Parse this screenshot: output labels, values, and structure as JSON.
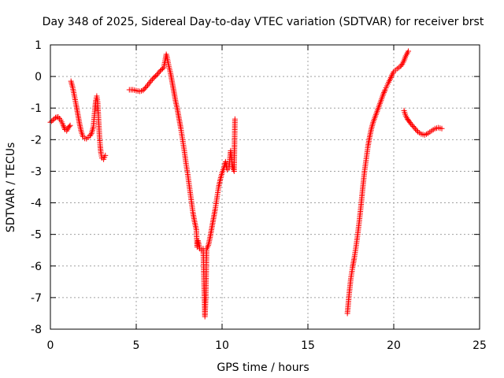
{
  "chart_data": {
    "type": "scatter",
    "title": "Day 348 of 2025, Sidereal Day-to-day VTEC variation (SDTVAR) for receiver brst",
    "xlabel": "GPS time / hours",
    "ylabel": "SDTVAR / TECUs",
    "xlim": [
      0,
      25
    ],
    "ylim": [
      -8,
      1
    ],
    "xticks": [
      0,
      5,
      10,
      15,
      20,
      25
    ],
    "yticks": [
      -8,
      -7,
      -6,
      -5,
      -4,
      -3,
      -2,
      -1,
      0,
      1
    ],
    "grid": true,
    "marker": "+",
    "color": "#ff0000",
    "series": [
      {
        "name": "SDTVAR",
        "segments": [
          [
            [
              0.0,
              -1.45
            ],
            [
              0.15,
              -1.38
            ],
            [
              0.3,
              -1.3
            ],
            [
              0.45,
              -1.28
            ],
            [
              0.6,
              -1.38
            ],
            [
              0.75,
              -1.55
            ],
            [
              0.85,
              -1.68
            ],
            [
              0.95,
              -1.72
            ],
            [
              1.05,
              -1.62
            ],
            [
              1.15,
              -1.55
            ]
          ],
          [
            [
              1.2,
              -0.15
            ],
            [
              1.3,
              -0.35
            ],
            [
              1.4,
              -0.62
            ],
            [
              1.5,
              -0.9
            ],
            [
              1.6,
              -1.2
            ],
            [
              1.7,
              -1.5
            ],
            [
              1.8,
              -1.75
            ],
            [
              1.9,
              -1.9
            ],
            [
              2.0,
              -1.96
            ],
            [
              2.1,
              -1.97
            ],
            [
              2.2,
              -1.93
            ],
            [
              2.3,
              -1.88
            ],
            [
              2.4,
              -1.8
            ],
            [
              2.5,
              -1.6
            ],
            [
              2.55,
              -1.3
            ],
            [
              2.6,
              -1.0
            ],
            [
              2.65,
              -0.75
            ],
            [
              2.7,
              -0.62
            ],
            [
              2.75,
              -0.8
            ],
            [
              2.8,
              -1.3
            ],
            [
              2.85,
              -1.8
            ],
            [
              2.9,
              -2.2
            ],
            [
              2.95,
              -2.45
            ],
            [
              3.0,
              -2.58
            ],
            [
              3.1,
              -2.62
            ],
            [
              3.2,
              -2.5
            ]
          ],
          [
            [
              4.6,
              -0.42
            ],
            [
              4.8,
              -0.42
            ],
            [
              5.0,
              -0.45
            ],
            [
              5.2,
              -0.47
            ],
            [
              5.4,
              -0.44
            ],
            [
              5.6,
              -0.32
            ],
            [
              5.8,
              -0.18
            ],
            [
              6.0,
              -0.05
            ],
            [
              6.2,
              0.05
            ],
            [
              6.4,
              0.18
            ],
            [
              6.6,
              0.28
            ],
            [
              6.7,
              0.55
            ],
            [
              6.75,
              0.7
            ],
            [
              6.8,
              0.6
            ],
            [
              6.9,
              0.32
            ],
            [
              7.0,
              0.1
            ],
            [
              7.1,
              -0.2
            ],
            [
              7.2,
              -0.5
            ],
            [
              7.3,
              -0.8
            ],
            [
              7.4,
              -1.05
            ],
            [
              7.5,
              -1.35
            ],
            [
              7.6,
              -1.65
            ],
            [
              7.7,
              -2.0
            ],
            [
              7.8,
              -2.35
            ],
            [
              7.9,
              -2.75
            ],
            [
              8.0,
              -3.1
            ],
            [
              8.1,
              -3.5
            ],
            [
              8.2,
              -3.9
            ],
            [
              8.3,
              -4.3
            ],
            [
              8.4,
              -4.6
            ],
            [
              8.5,
              -4.85
            ],
            [
              8.55,
              -5.4
            ],
            [
              8.6,
              -5.2
            ],
            [
              8.7,
              -5.45
            ],
            [
              8.8,
              -5.5
            ],
            [
              8.9,
              -5.45
            ],
            [
              9.0,
              -7.6
            ],
            [
              9.05,
              -7.0
            ],
            [
              9.1,
              -5.45
            ],
            [
              9.2,
              -5.35
            ],
            [
              9.3,
              -5.1
            ],
            [
              9.4,
              -4.8
            ],
            [
              9.5,
              -4.5
            ],
            [
              9.6,
              -4.2
            ],
            [
              9.7,
              -3.85
            ],
            [
              9.8,
              -3.5
            ],
            [
              9.9,
              -3.25
            ],
            [
              10.0,
              -3.05
            ],
            [
              10.1,
              -2.9
            ],
            [
              10.2,
              -2.7
            ],
            [
              10.3,
              -2.95
            ],
            [
              10.4,
              -2.9
            ],
            [
              10.5,
              -2.35
            ],
            [
              10.6,
              -2.85
            ],
            [
              10.7,
              -3.0
            ],
            [
              10.75,
              -1.35
            ]
          ],
          [
            [
              17.3,
              -7.5
            ],
            [
              17.4,
              -6.9
            ],
            [
              17.5,
              -6.4
            ],
            [
              17.6,
              -6.05
            ],
            [
              17.7,
              -5.75
            ],
            [
              17.8,
              -5.4
            ],
            [
              17.9,
              -5.0
            ],
            [
              18.0,
              -4.55
            ],
            [
              18.1,
              -4.05
            ],
            [
              18.2,
              -3.5
            ],
            [
              18.3,
              -3.0
            ],
            [
              18.4,
              -2.6
            ],
            [
              18.5,
              -2.2
            ],
            [
              18.6,
              -1.9
            ],
            [
              18.7,
              -1.65
            ],
            [
              18.8,
              -1.45
            ],
            [
              18.9,
              -1.3
            ],
            [
              19.0,
              -1.15
            ],
            [
              19.1,
              -1.0
            ],
            [
              19.2,
              -0.85
            ],
            [
              19.3,
              -0.7
            ],
            [
              19.4,
              -0.55
            ],
            [
              19.5,
              -0.42
            ],
            [
              19.6,
              -0.3
            ],
            [
              19.7,
              -0.18
            ],
            [
              19.8,
              -0.08
            ],
            [
              19.9,
              0.05
            ],
            [
              20.0,
              0.15
            ],
            [
              20.1,
              0.2
            ],
            [
              20.2,
              0.25
            ],
            [
              20.3,
              0.28
            ],
            [
              20.4,
              0.32
            ],
            [
              20.5,
              0.4
            ],
            [
              20.6,
              0.5
            ],
            [
              20.7,
              0.65
            ],
            [
              20.8,
              0.75
            ],
            [
              20.85,
              0.8
            ]
          ],
          [
            [
              20.6,
              -1.08
            ],
            [
              20.7,
              -1.25
            ],
            [
              20.8,
              -1.35
            ],
            [
              20.9,
              -1.42
            ],
            [
              21.0,
              -1.5
            ],
            [
              21.2,
              -1.62
            ],
            [
              21.4,
              -1.75
            ],
            [
              21.6,
              -1.82
            ],
            [
              21.8,
              -1.85
            ],
            [
              22.0,
              -1.8
            ],
            [
              22.2,
              -1.72
            ],
            [
              22.4,
              -1.65
            ],
            [
              22.6,
              -1.62
            ],
            [
              22.8,
              -1.65
            ]
          ]
        ]
      }
    ]
  }
}
